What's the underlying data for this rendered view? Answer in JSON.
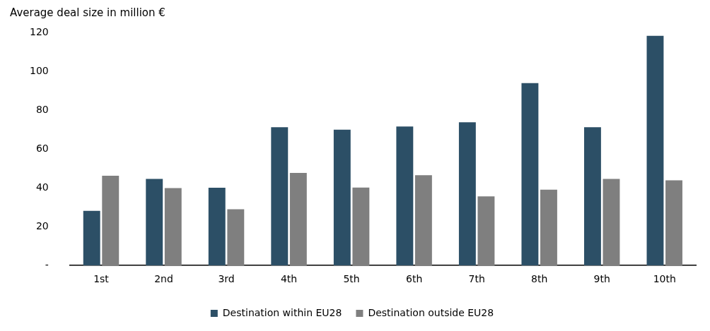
{
  "chart_data": {
    "type": "bar",
    "ylabel": "Average deal size in million €",
    "categories": [
      "1st",
      "2nd",
      "3rd",
      "4th",
      "5th",
      "6th",
      "7th",
      "8th",
      "9th",
      "10th"
    ],
    "series": [
      {
        "name": "Destination within EU28",
        "color": "#2c4f66",
        "values": [
          28.2,
          44.6,
          40.1,
          71.3,
          70.0,
          71.7,
          73.8,
          94.0,
          71.3,
          118.4
        ]
      },
      {
        "name": "Destination outside EU28",
        "color": "#7f7f7f",
        "values": [
          46.3,
          39.9,
          29.0,
          47.7,
          40.2,
          46.6,
          35.6,
          39.1,
          44.6,
          43.9
        ]
      }
    ],
    "ylim": [
      0,
      120
    ],
    "yticks": [
      {
        "value": 0,
        "label": "-"
      },
      20,
      40,
      60,
      80,
      100,
      120
    ],
    "grid": false,
    "legend": "bottom"
  }
}
